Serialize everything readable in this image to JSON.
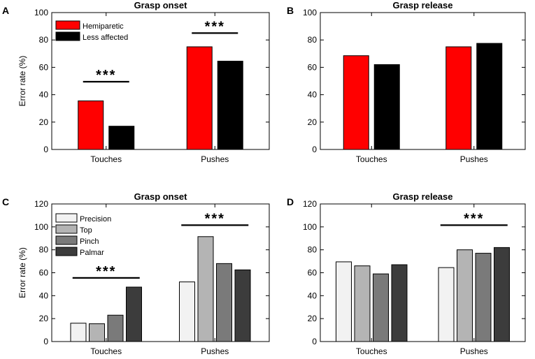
{
  "chart_data": [
    {
      "panel": "A",
      "type": "bar",
      "title": "Grasp onset",
      "xlabel": "",
      "ylabel": "Error rate (%)",
      "ylim": [
        0,
        100
      ],
      "yticks": [
        0,
        20,
        40,
        60,
        80,
        100
      ],
      "categories": [
        "Touches",
        "Pushes"
      ],
      "series": [
        {
          "name": "Hemiparetic",
          "color": "#ff0000",
          "values": [
            35.5,
            75
          ]
        },
        {
          "name": "Less affected",
          "color": "#000000",
          "values": [
            17,
            64.5
          ]
        }
      ],
      "legend": "top-left",
      "significance": [
        {
          "category": "Touches",
          "label": "***",
          "level": 49.5
        },
        {
          "category": "Pushes",
          "label": "***",
          "level": 85
        }
      ]
    },
    {
      "panel": "B",
      "type": "bar",
      "title": "Grasp release",
      "xlabel": "",
      "ylabel": "",
      "ylim": [
        0,
        100
      ],
      "yticks": [
        0,
        20,
        40,
        60,
        80,
        100
      ],
      "categories": [
        "Touches",
        "Pushes"
      ],
      "series": [
        {
          "name": "Hemiparetic",
          "color": "#ff0000",
          "values": [
            68.5,
            75
          ]
        },
        {
          "name": "Less affected",
          "color": "#000000",
          "values": [
            62,
            77.5
          ]
        }
      ],
      "legend": "none",
      "significance": []
    },
    {
      "panel": "C",
      "type": "bar",
      "title": "Grasp onset",
      "xlabel": "",
      "ylabel": "Error rate (%)",
      "ylim": [
        0,
        120
      ],
      "yticks": [
        0,
        20,
        40,
        60,
        80,
        100,
        120
      ],
      "categories": [
        "Touches",
        "Pushes"
      ],
      "series": [
        {
          "name": "Precision",
          "color": "#f2f2f2",
          "values": [
            16,
            52
          ]
        },
        {
          "name": "Top",
          "color": "#b4b4b4",
          "values": [
            15.5,
            91.5
          ]
        },
        {
          "name": "Pinch",
          "color": "#7a7a7a",
          "values": [
            23,
            68
          ]
        },
        {
          "name": "Palmar",
          "color": "#3c3c3c",
          "values": [
            47.5,
            62.5
          ]
        }
      ],
      "legend": "top-left",
      "significance": [
        {
          "category": "Touches",
          "label": "***",
          "level": 55.5
        },
        {
          "category": "Pushes",
          "label": "***",
          "level": 101.5
        }
      ]
    },
    {
      "panel": "D",
      "type": "bar",
      "title": "Grasp release",
      "xlabel": "",
      "ylabel": "",
      "ylim": [
        0,
        120
      ],
      "yticks": [
        0,
        20,
        40,
        60,
        80,
        100,
        120
      ],
      "categories": [
        "Touches",
        "Pushes"
      ],
      "series": [
        {
          "name": "Precision",
          "color": "#f2f2f2",
          "values": [
            69.5,
            64.5
          ]
        },
        {
          "name": "Top",
          "color": "#b4b4b4",
          "values": [
            66,
            80
          ]
        },
        {
          "name": "Pinch",
          "color": "#7a7a7a",
          "values": [
            59,
            77
          ]
        },
        {
          "name": "Palmar",
          "color": "#3c3c3c",
          "values": [
            67,
            82
          ]
        }
      ],
      "legend": "none",
      "significance": [
        {
          "category": "Pushes",
          "label": "***",
          "level": 101.5
        }
      ]
    }
  ]
}
